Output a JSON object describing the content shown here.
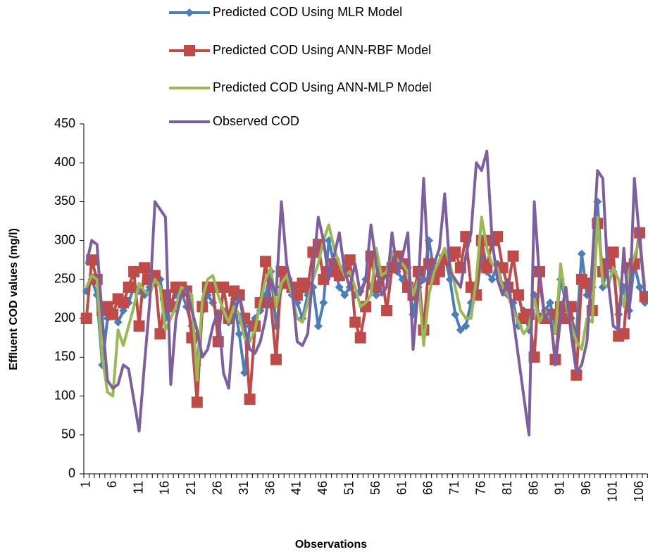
{
  "chart_data": {
    "type": "line",
    "y_label": "Effluent COD values (mg/l)",
    "x_label": "Observations",
    "legend": "top",
    "ylim": [
      0,
      450
    ],
    "yticks": [
      0,
      50,
      100,
      150,
      200,
      250,
      300,
      350,
      400,
      450
    ],
    "categories": [
      "1",
      null,
      null,
      null,
      null,
      "6",
      null,
      null,
      null,
      null,
      "11",
      null,
      null,
      null,
      null,
      "16",
      null,
      null,
      null,
      null,
      "21",
      null,
      null,
      null,
      null,
      "26",
      null,
      null,
      null,
      null,
      "31",
      null,
      null,
      null,
      null,
      "36",
      null,
      null,
      null,
      null,
      "41",
      null,
      null,
      null,
      null,
      "46",
      null,
      null,
      null,
      null,
      "51",
      null,
      null,
      null,
      null,
      "56",
      null,
      null,
      null,
      null,
      "61",
      null,
      null,
      null,
      null,
      "66",
      null,
      null,
      null,
      null,
      "71",
      null,
      null,
      null,
      null,
      "76",
      null,
      null,
      null,
      null,
      "81",
      null,
      null,
      null,
      null,
      "86",
      null,
      null,
      null,
      null,
      "91",
      null,
      null,
      null,
      null,
      "96",
      null,
      null,
      null,
      null,
      "101",
      null,
      null,
      null,
      null,
      "106",
      null
    ],
    "series": [
      {
        "name": "Predicted COD Using MLR Model",
        "color": "#4a7ebb",
        "marker": "diamond",
        "values": [
          235,
          250,
          230,
          140,
          200,
          205,
          195,
          210,
          220,
          240,
          235,
          230,
          240,
          245,
          250,
          200,
          220,
          230,
          235,
          215,
          190,
          140,
          210,
          230,
          220,
          200,
          210,
          195,
          225,
          180,
          130,
          190,
          200,
          210,
          230,
          260,
          190,
          240,
          250,
          230,
          220,
          200,
          230,
          240,
          190,
          220,
          300,
          270,
          240,
          230,
          240,
          230,
          235,
          250,
          240,
          230,
          250,
          255,
          270,
          260,
          250,
          265,
          205,
          240,
          250,
          300,
          260,
          270,
          280,
          250,
          205,
          185,
          190,
          220,
          230,
          280,
          260,
          250,
          270,
          240,
          230,
          220,
          190,
          210,
          185,
          230,
          200,
          210,
          220,
          190,
          250,
          220,
          200,
          180,
          283,
          230,
          240,
          350,
          240,
          270,
          260,
          205,
          240,
          210,
          270,
          240,
          220
        ]
      },
      {
        "name": "Predicted COD Using ANN-RBF Model",
        "color": "#be4b48",
        "marker": "square",
        "values": [
          200,
          275,
          250,
          210,
          215,
          205,
          225,
          220,
          240,
          260,
          190,
          265,
          250,
          255,
          180,
          230,
          215,
          240,
          240,
          235,
          175,
          92,
          215,
          240,
          240,
          170,
          240,
          200,
          235,
          230,
          200,
          96,
          190,
          220,
          273,
          220,
          147,
          260,
          245,
          240,
          230,
          245,
          240,
          285,
          295,
          250,
          260,
          270,
          255,
          260,
          275,
          195,
          175,
          215,
          280,
          240,
          260,
          210,
          265,
          280,
          270,
          240,
          230,
          260,
          185,
          270,
          250,
          260,
          275,
          280,
          285,
          265,
          305,
          240,
          230,
          300,
          265,
          300,
          305,
          265,
          240,
          280,
          230,
          200,
          205,
          150,
          260,
          200,
          205,
          147,
          215,
          200,
          215,
          127,
          250,
          245,
          210,
          322,
          260,
          270,
          285,
          177,
          180,
          265,
          270,
          310,
          228
        ]
      },
      {
        "name": "Predicted COD Using ANN-MLP Model",
        "color": "#98b954",
        "marker": "none",
        "values": [
          240,
          255,
          250,
          150,
          105,
          100,
          185,
          165,
          190,
          215,
          245,
          235,
          230,
          250,
          240,
          185,
          200,
          215,
          240,
          235,
          230,
          120,
          225,
          250,
          255,
          230,
          210,
          195,
          215,
          205,
          175,
          170,
          185,
          220,
          250,
          265,
          215,
          245,
          255,
          230,
          200,
          195,
          220,
          250,
          270,
          300,
          320,
          290,
          270,
          255,
          260,
          240,
          215,
          220,
          230,
          290,
          255,
          260,
          285,
          275,
          270,
          260,
          230,
          250,
          165,
          230,
          260,
          275,
          290,
          270,
          240,
          210,
          200,
          200,
          250,
          330,
          290,
          270,
          265,
          240,
          230,
          210,
          195,
          180,
          190,
          225,
          195,
          210,
          200,
          180,
          270,
          220,
          190,
          170,
          160,
          200,
          195,
          330,
          245,
          240,
          265,
          250,
          215,
          260,
          280,
          300,
          240
        ]
      },
      {
        "name": "Observed COD",
        "color": "#7d5fa0",
        "marker": "none",
        "values": [
          270,
          300,
          295,
          200,
          120,
          110,
          115,
          140,
          135,
          95,
          55,
          140,
          220,
          350,
          340,
          330,
          115,
          200,
          230,
          240,
          210,
          185,
          150,
          160,
          190,
          210,
          130,
          110,
          200,
          230,
          190,
          160,
          155,
          170,
          200,
          250,
          230,
          350,
          270,
          240,
          170,
          165,
          180,
          260,
          330,
          300,
          250,
          280,
          310,
          260,
          240,
          270,
          230,
          250,
          320,
          270,
          230,
          240,
          310,
          260,
          280,
          310,
          160,
          240,
          380,
          250,
          270,
          290,
          360,
          260,
          250,
          240,
          280,
          310,
          400,
          390,
          415,
          300,
          250,
          230,
          250,
          200,
          150,
          100,
          50,
          350,
          250,
          200,
          210,
          140,
          200,
          240,
          180,
          130,
          140,
          170,
          270,
          390,
          380,
          250,
          190,
          185,
          290,
          200,
          380,
          300,
          230
        ]
      }
    ]
  }
}
